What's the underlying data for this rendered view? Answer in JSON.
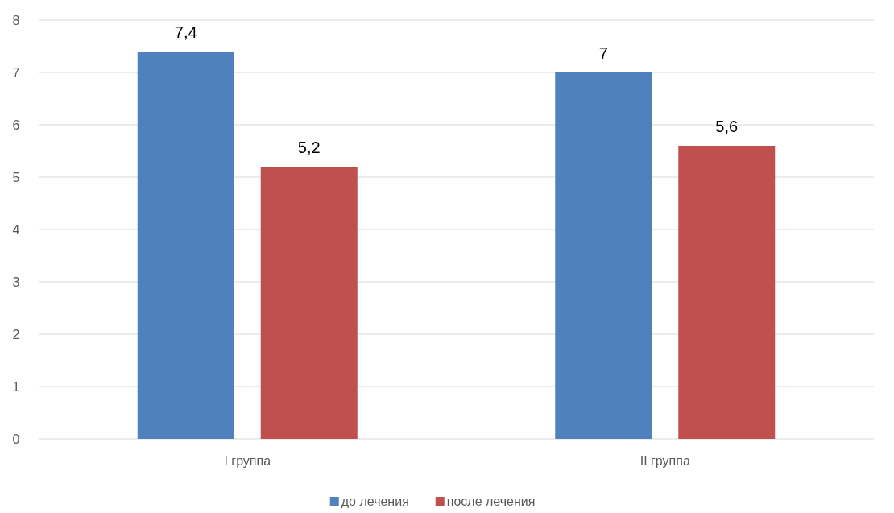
{
  "chart_data": {
    "type": "bar",
    "categories": [
      "I группа",
      "II группа"
    ],
    "series": [
      {
        "name": "до лечения",
        "color": "#4f81bd",
        "values": [
          7.4,
          7
        ],
        "value_labels": [
          "7,4",
          "7"
        ]
      },
      {
        "name": "после лечения",
        "color": "#c0504d",
        "values": [
          5.2,
          5.6
        ],
        "value_labels": [
          "5,2",
          "5,6"
        ]
      }
    ],
    "ylim": [
      0,
      8
    ],
    "yticks": [
      0,
      1,
      2,
      3,
      4,
      5,
      6,
      7,
      8
    ],
    "grid": "y",
    "legend": "bottom"
  }
}
